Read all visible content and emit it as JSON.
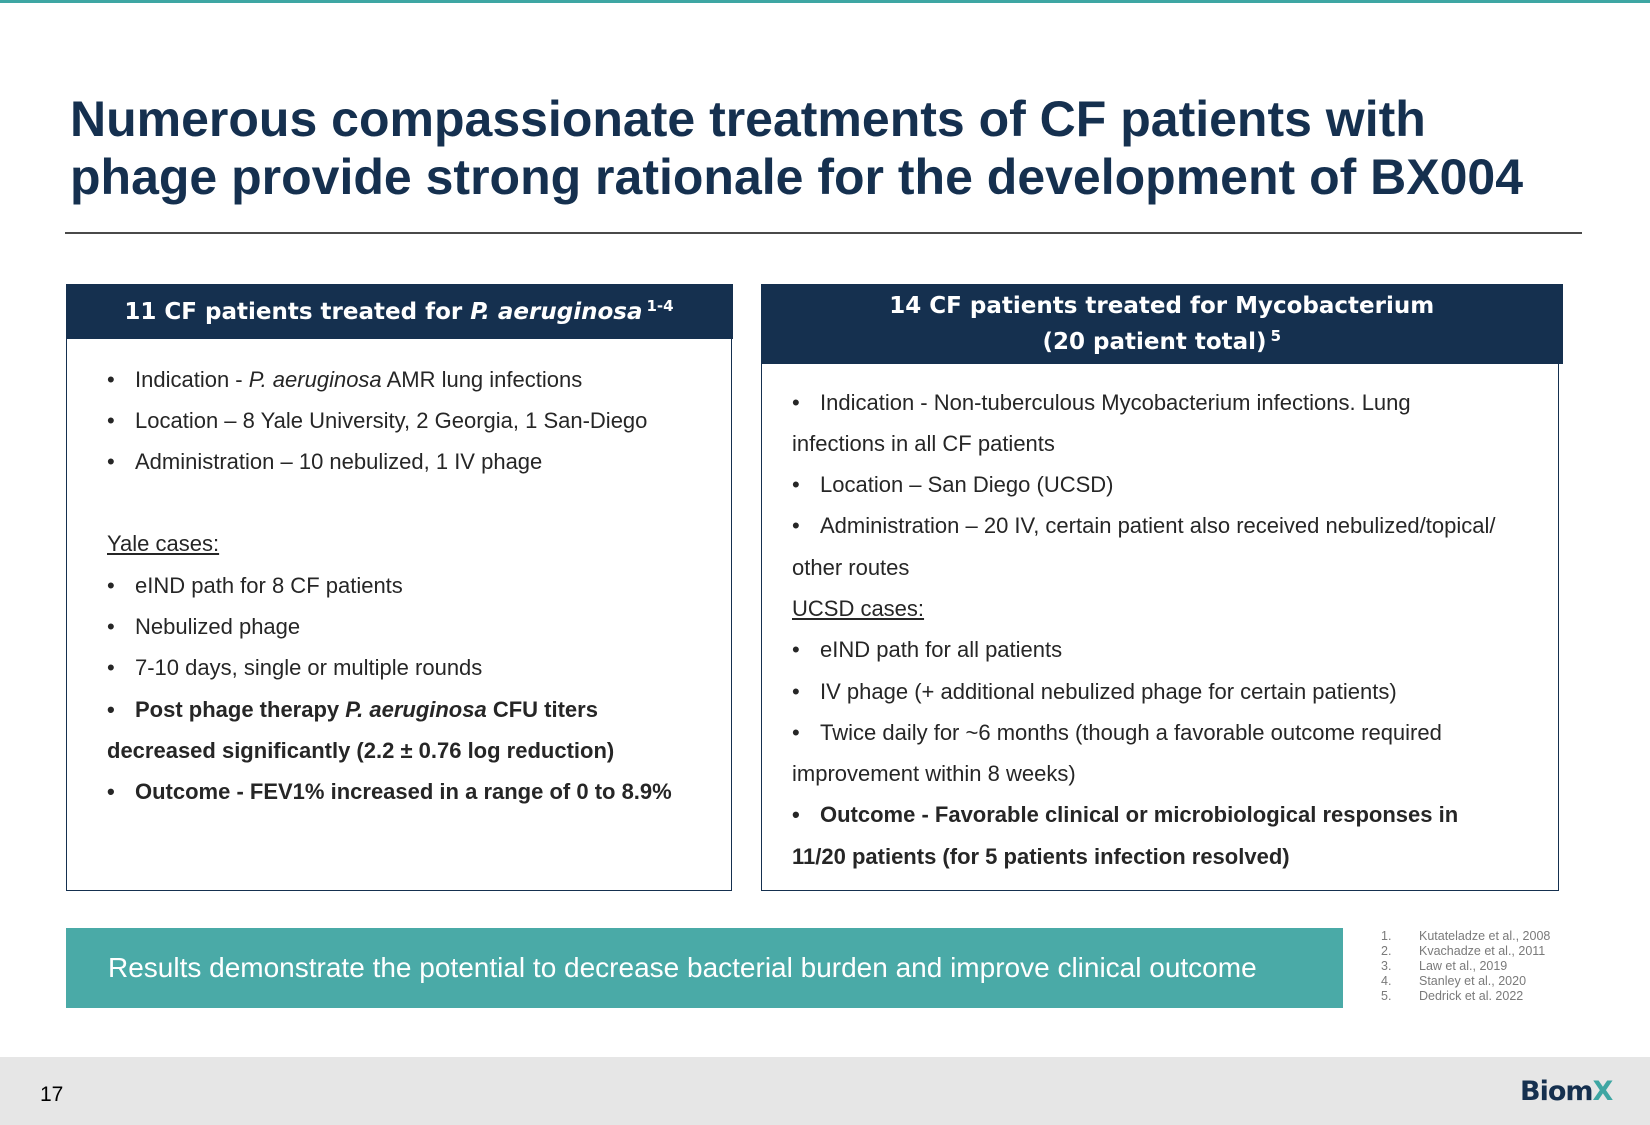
{
  "title": {
    "line1": "Numerous compassionate treatments of CF patients with",
    "line2": "phage provide strong rationale for the development of BX004"
  },
  "left_panel": {
    "header_prefix": "11 CF patients treated for ",
    "header_italic": "P. aeruginosa",
    "header_sup": "1-4",
    "items": {
      "indication_a": "Indication - ",
      "indication_b": "P. aeruginosa",
      "indication_c": " AMR lung infections",
      "location": "Location – 8 Yale University, 2 Georgia, 1 San-Diego",
      "administration": "Administration – 10 nebulized, 1 IV phage",
      "yale_heading": "Yale cases:",
      "eind": "eIND path for 8 CF patients",
      "nebulized": "Nebulized phage",
      "days": "7-10 days, single or multiple rounds",
      "post_a": "Post phage therapy ",
      "post_b": "P. aeruginosa",
      "post_c": " CFU titers",
      "post_d": "decreased significantly (2.2 ± 0.76 log reduction)",
      "outcome": "Outcome - FEV1% increased in a range of 0 to 8.9%"
    }
  },
  "right_panel": {
    "header_line1": "14 CF patients treated for Mycobacterium",
    "header_line2": "(20 patient total)",
    "header_sup": "5",
    "items": {
      "indication_a": "Indication - Non-tuberculous Mycobacterium infections. Lung",
      "indication_b": "infections in all CF patients",
      "location": "Location – San Diego (UCSD)",
      "administration_a": "Administration – 20 IV, certain patient also received nebulized/topical/",
      "administration_b": "other routes",
      "ucsd_heading": "UCSD cases:",
      "eind": "eIND path for all patients",
      "iv": "IV phage (+ additional nebulized phage for certain patients)",
      "twice_a": "Twice daily for ~6 months (though a favorable outcome required",
      "twice_b": "improvement within 8 weeks)",
      "outcome_a": "Outcome - Favorable clinical or microbiological responses in",
      "outcome_b": "11/20 patients (for 5 patients infection resolved)"
    }
  },
  "result_banner": "Results demonstrate the potential to decrease bacterial burden and improve clinical outcome",
  "references": [
    {
      "num": "1.",
      "text": "Kutateladze et al., 2008"
    },
    {
      "num": "2.",
      "text": "Kvachadze et al., 2011"
    },
    {
      "num": "3.",
      "text": "Law et al., 2019"
    },
    {
      "num": "4.",
      "text": "Stanley et al., 2020"
    },
    {
      "num": "5.",
      "text": "Dedrick  et al. 2022"
    }
  ],
  "page_number": "17",
  "logo": {
    "main": "Biom",
    "accent": "X"
  },
  "bullet": "•",
  "colors": {
    "navy": "#15304f",
    "teal": "#4aaaa7",
    "accent": "#3ea6a3"
  }
}
